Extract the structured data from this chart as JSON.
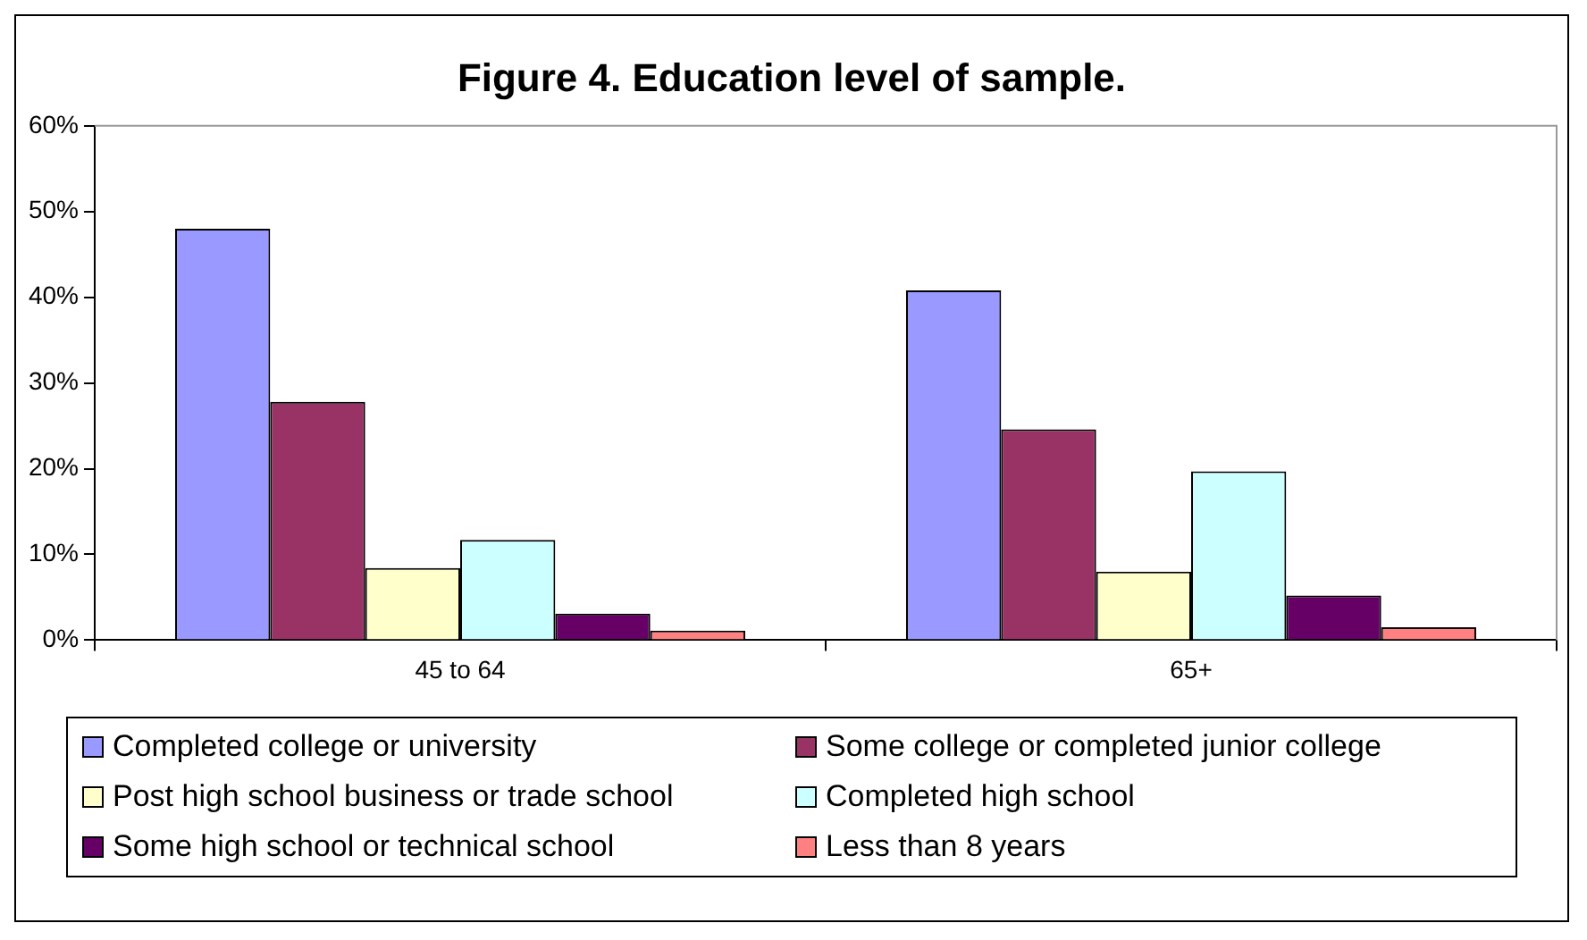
{
  "chart_data": {
    "type": "bar",
    "title": "Figure 4. Education level of sample.",
    "categories": [
      "45 to 64",
      "65+"
    ],
    "series": [
      {
        "name": "Completed college or university",
        "color": "#9999ff",
        "values": [
          48.0,
          40.8
        ]
      },
      {
        "name": "Some college or completed junior college",
        "color": "#993366",
        "values": [
          27.8,
          24.6
        ]
      },
      {
        "name": "Post high school business or trade school",
        "color": "#ffffcc",
        "values": [
          8.4,
          8.0
        ]
      },
      {
        "name": "Completed high school",
        "color": "#ccffff",
        "values": [
          11.7,
          19.7
        ]
      },
      {
        "name": "Some high school or technical school",
        "color": "#660066",
        "values": [
          3.1,
          5.2
        ]
      },
      {
        "name": "Less than 8 years",
        "color": "#ff8080",
        "values": [
          1.1,
          1.5
        ]
      }
    ],
    "ylim": [
      0,
      60
    ],
    "yticks": [
      {
        "value": 0,
        "label": "0%"
      },
      {
        "value": 10,
        "label": "10%"
      },
      {
        "value": 20,
        "label": "20%"
      },
      {
        "value": 30,
        "label": "30%"
      },
      {
        "value": 40,
        "label": "40%"
      },
      {
        "value": 50,
        "label": "50%"
      },
      {
        "value": 60,
        "label": "60%"
      }
    ],
    "grid": false,
    "legend": "bottom"
  }
}
